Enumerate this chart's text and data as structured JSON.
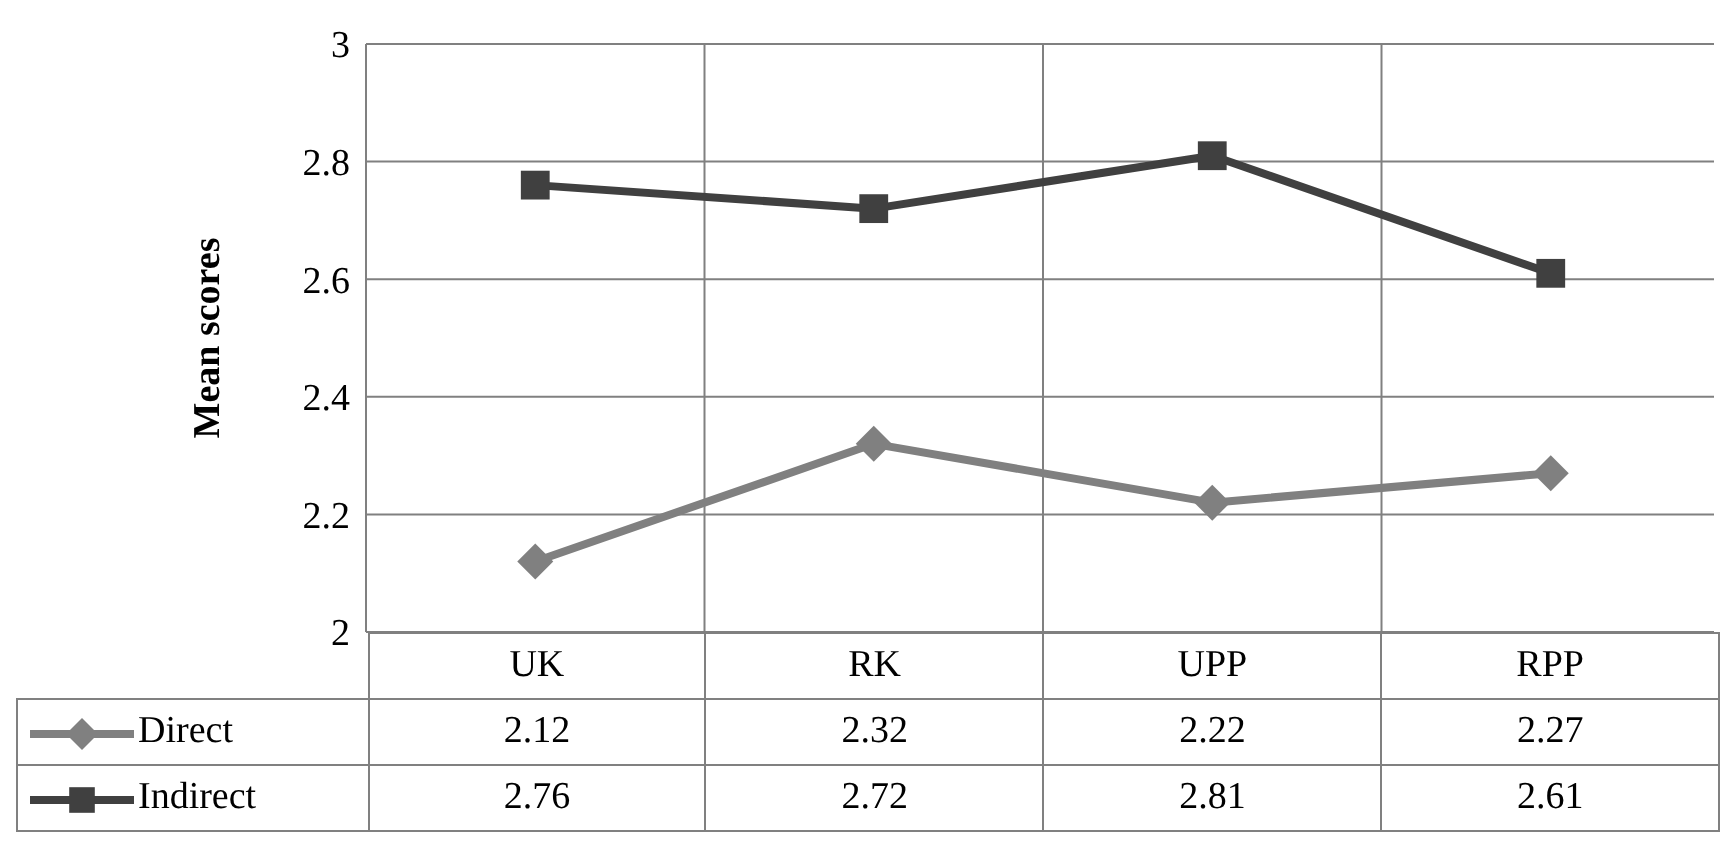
{
  "chart_data": {
    "type": "line",
    "ylabel": "Mean scores",
    "categories": [
      "UK",
      "RK",
      "UPP",
      "RPP"
    ],
    "series": [
      {
        "name": "Direct",
        "color": "#808080",
        "marker": "diamond",
        "values": [
          2.12,
          2.32,
          2.22,
          2.27
        ]
      },
      {
        "name": "Indirect",
        "color": "#404040",
        "marker": "square",
        "values": [
          2.76,
          2.72,
          2.81,
          2.61
        ]
      }
    ],
    "ylim": [
      2,
      3
    ],
    "yticks": [
      2,
      2.2,
      2.4,
      2.6,
      2.8,
      3
    ],
    "grid": true,
    "legend": "bottom",
    "data_labels": true
  }
}
